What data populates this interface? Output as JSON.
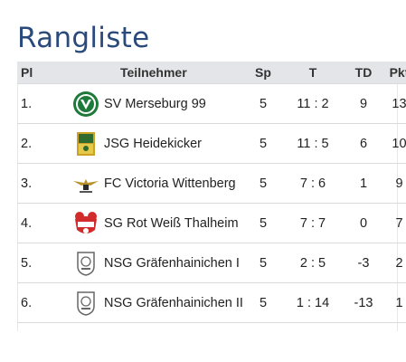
{
  "title": "Rangliste",
  "columns": {
    "pl": "Pl",
    "team": "Teilnehmer",
    "sp": "Sp",
    "t": "T",
    "td": "TD",
    "pkt": "Pkt"
  },
  "rows": [
    {
      "pl": "1.",
      "team": "SV Merseburg 99",
      "sp": "5",
      "t": "11 : 2",
      "td": "9",
      "pkt": "13",
      "logo": "merseburg-crest-icon"
    },
    {
      "pl": "2.",
      "team": "JSG Heidekicker",
      "sp": "5",
      "t": "11 : 5",
      "td": "6",
      "pkt": "10",
      "logo": "heidekicker-crest-icon"
    },
    {
      "pl": "3.",
      "team": "FC Victoria Wittenberg",
      "sp": "5",
      "t": "7 : 6",
      "td": "1",
      "pkt": "9",
      "logo": "victoria-eagle-crest-icon"
    },
    {
      "pl": "4.",
      "team": "SG Rot Weiß Thalheim",
      "sp": "5",
      "t": "7 : 7",
      "td": "0",
      "pkt": "7",
      "logo": "thalheim-crest-icon"
    },
    {
      "pl": "5.",
      "team": "NSG Gräfenhainichen I",
      "sp": "5",
      "t": "2 : 5",
      "td": "-3",
      "pkt": "2",
      "logo": "graefenhainichen-crest-icon"
    },
    {
      "pl": "6.",
      "team": "NSG Gräfenhainichen II",
      "sp": "5",
      "t": "1 : 14",
      "td": "-13",
      "pkt": "1",
      "logo": "graefenhainichen-crest-icon"
    }
  ],
  "colors": {
    "title": "#2b4a7c",
    "header_bg": "#e3e5e8",
    "green": "#1f7a3a",
    "red": "#d22b2b",
    "gold": "#c9a227"
  }
}
